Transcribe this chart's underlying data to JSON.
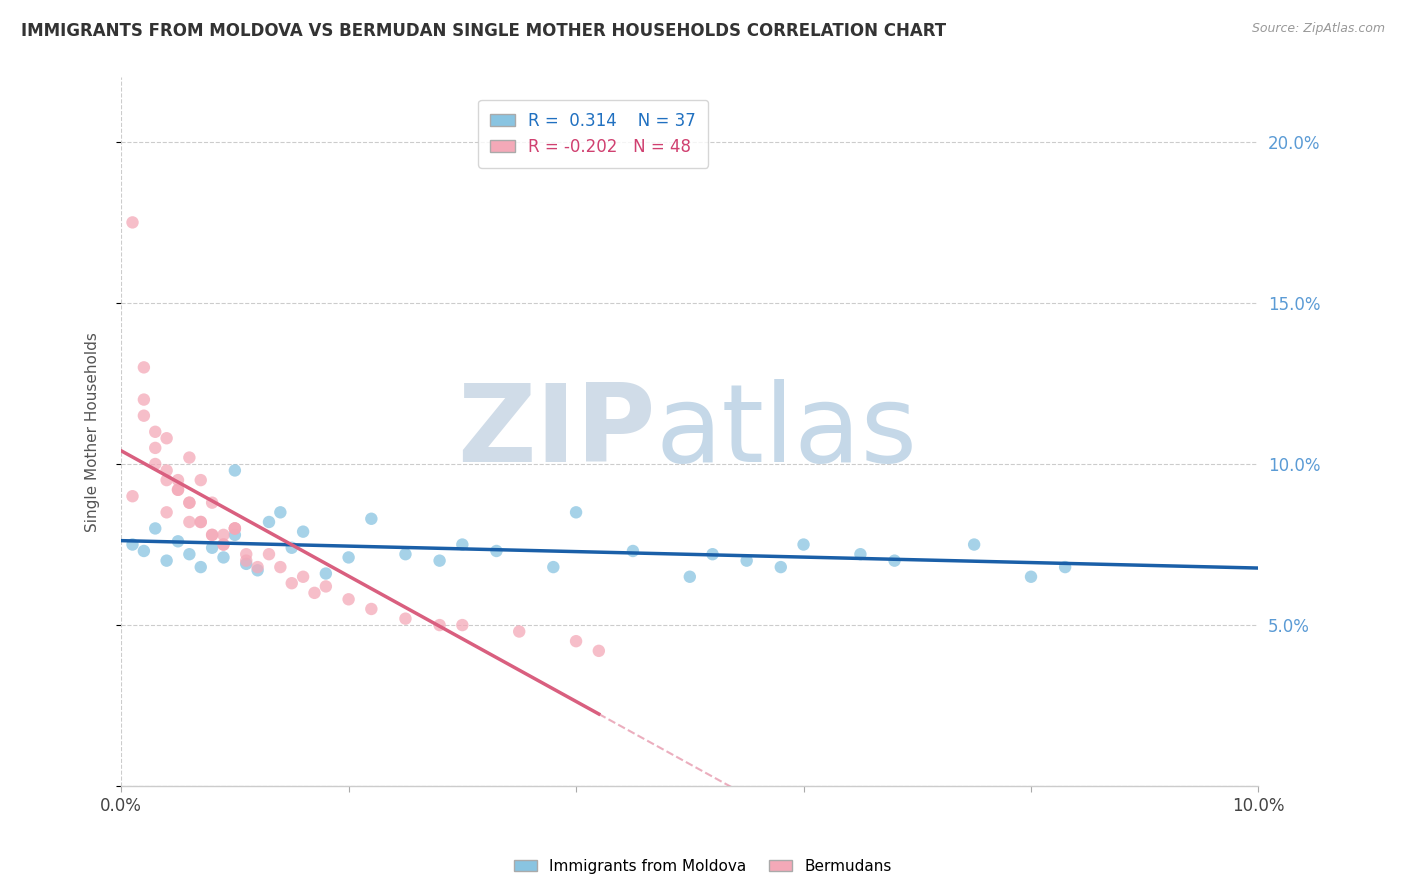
{
  "title": "IMMIGRANTS FROM MOLDOVA VS BERMUDAN SINGLE MOTHER HOUSEHOLDS CORRELATION CHART",
  "source": "Source: ZipAtlas.com",
  "ylabel": "Single Mother Households",
  "legend_bottom": [
    "Immigrants from Moldova",
    "Bermudans"
  ],
  "r_moldova": 0.314,
  "n_moldova": 37,
  "r_bermuda": -0.202,
  "n_bermuda": 48,
  "xlim": [
    0.0,
    0.1
  ],
  "ylim": [
    0.0,
    0.22
  ],
  "color_moldova": "#89c4e1",
  "color_bermuda": "#f4a9b8",
  "trendline_moldova": "#1a5fa8",
  "trendline_bermuda": "#d95f7f",
  "moldova_scatter_x": [
    0.001,
    0.002,
    0.003,
    0.004,
    0.005,
    0.006,
    0.007,
    0.008,
    0.009,
    0.01,
    0.011,
    0.012,
    0.013,
    0.014,
    0.015,
    0.016,
    0.018,
    0.02,
    0.022,
    0.025,
    0.028,
    0.03,
    0.033,
    0.038,
    0.04,
    0.045,
    0.05,
    0.052,
    0.055,
    0.058,
    0.06,
    0.065,
    0.068,
    0.075,
    0.08,
    0.083,
    0.01
  ],
  "moldova_scatter_y": [
    0.075,
    0.073,
    0.08,
    0.07,
    0.076,
    0.072,
    0.068,
    0.074,
    0.071,
    0.078,
    0.069,
    0.067,
    0.082,
    0.085,
    0.074,
    0.079,
    0.066,
    0.071,
    0.083,
    0.072,
    0.07,
    0.075,
    0.073,
    0.068,
    0.085,
    0.073,
    0.065,
    0.072,
    0.07,
    0.068,
    0.075,
    0.072,
    0.07,
    0.075,
    0.065,
    0.068,
    0.098
  ],
  "bermuda_scatter_x": [
    0.001,
    0.002,
    0.003,
    0.004,
    0.005,
    0.006,
    0.007,
    0.008,
    0.009,
    0.01,
    0.002,
    0.003,
    0.004,
    0.005,
    0.006,
    0.007,
    0.008,
    0.009,
    0.01,
    0.011,
    0.003,
    0.004,
    0.005,
    0.006,
    0.007,
    0.008,
    0.009,
    0.01,
    0.011,
    0.012,
    0.013,
    0.014,
    0.015,
    0.016,
    0.017,
    0.018,
    0.02,
    0.022,
    0.025,
    0.028,
    0.03,
    0.035,
    0.04,
    0.042,
    0.002,
    0.004,
    0.006,
    0.001
  ],
  "bermuda_scatter_y": [
    0.09,
    0.115,
    0.1,
    0.085,
    0.092,
    0.082,
    0.095,
    0.088,
    0.078,
    0.08,
    0.12,
    0.105,
    0.095,
    0.092,
    0.088,
    0.082,
    0.078,
    0.075,
    0.08,
    0.072,
    0.11,
    0.098,
    0.095,
    0.088,
    0.082,
    0.078,
    0.075,
    0.08,
    0.07,
    0.068,
    0.072,
    0.068,
    0.063,
    0.065,
    0.06,
    0.062,
    0.058,
    0.055,
    0.052,
    0.05,
    0.05,
    0.048,
    0.045,
    0.042,
    0.13,
    0.108,
    0.102,
    0.175
  ]
}
